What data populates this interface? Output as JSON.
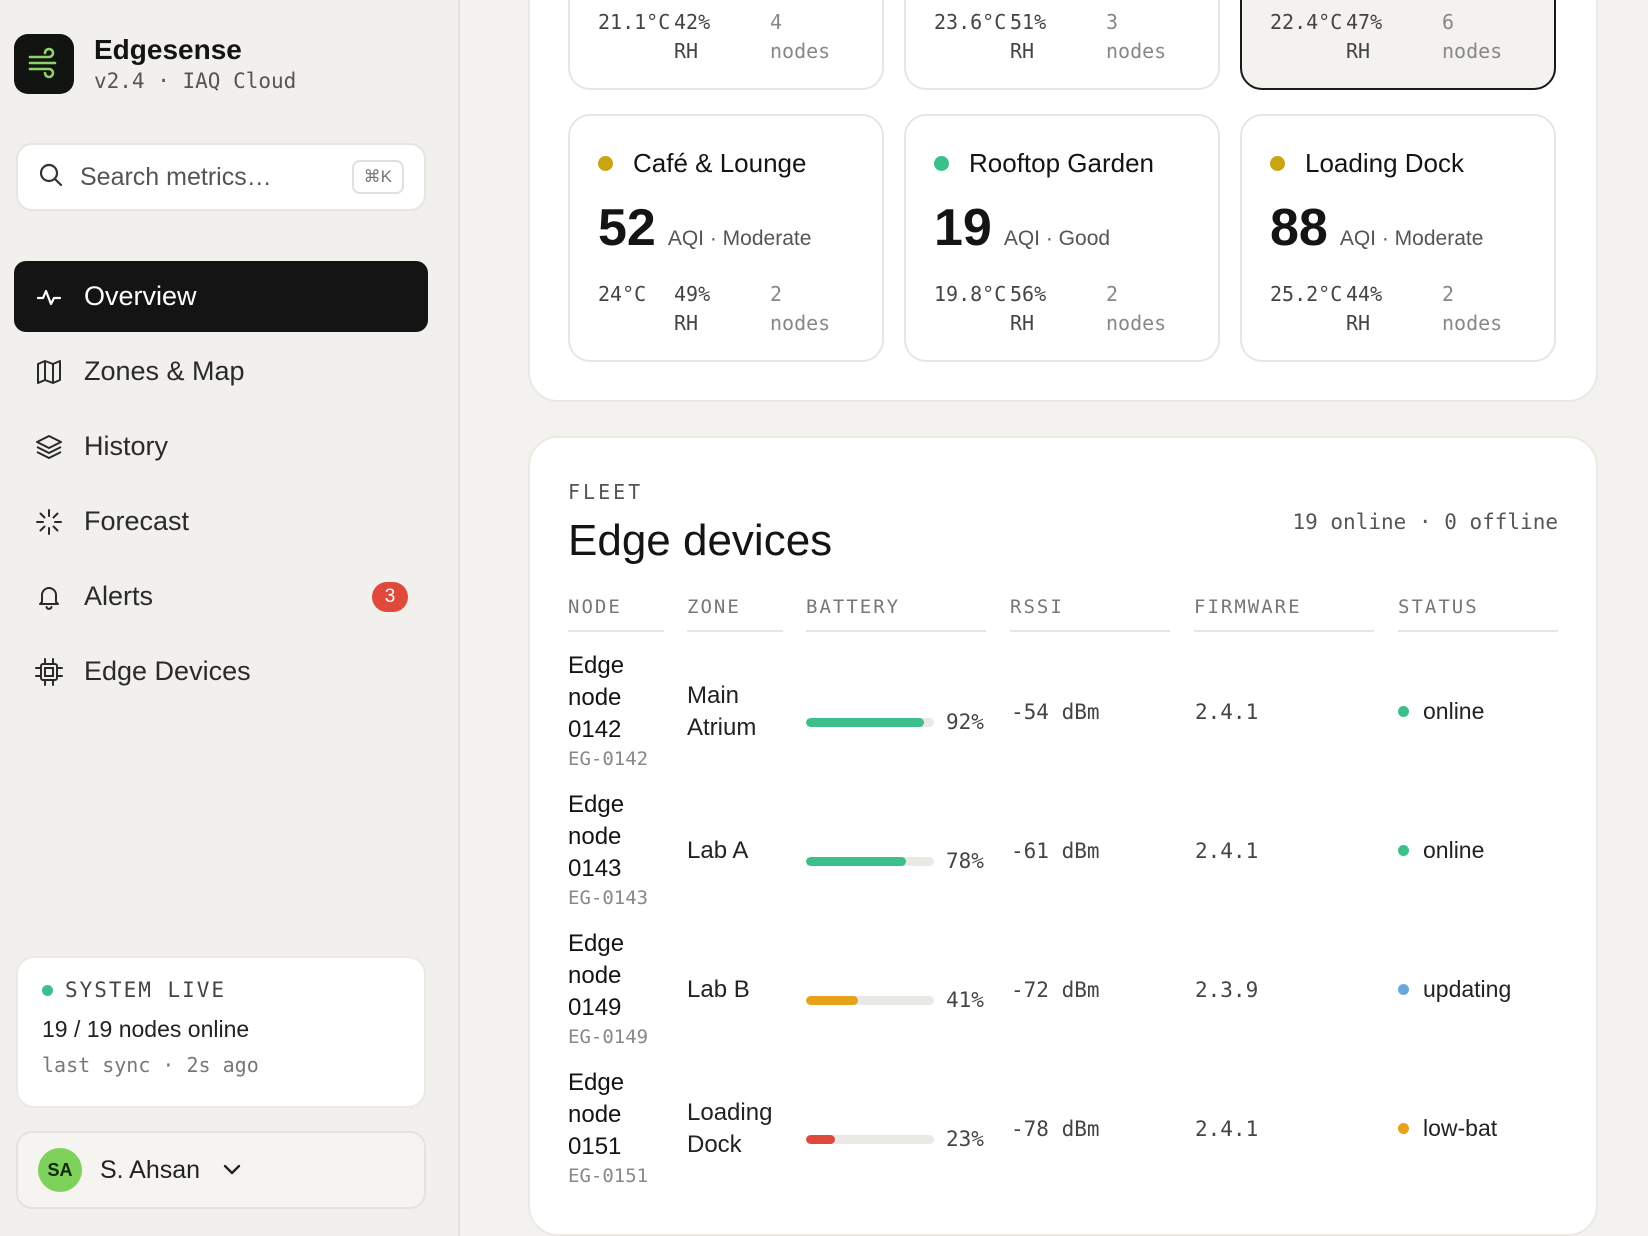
{
  "brand": {
    "name": "Edgesense",
    "subtitle": "v2.4 · IAQ Cloud",
    "logo_icon": "wind-icon",
    "logo_color": "#8fd16a"
  },
  "search": {
    "placeholder": "Search metrics…",
    "shortcut": "⌘K"
  },
  "nav": [
    {
      "label": "Overview",
      "icon": "pulse-icon",
      "active": true
    },
    {
      "label": "Zones & Map",
      "icon": "map-icon"
    },
    {
      "label": "History",
      "icon": "layers-icon"
    },
    {
      "label": "Forecast",
      "icon": "sparkle-icon"
    },
    {
      "label": "Alerts",
      "icon": "bell-icon",
      "badge": "3"
    },
    {
      "label": "Edge Devices",
      "icon": "chip-icon"
    }
  ],
  "system": {
    "status": "SYSTEM LIVE",
    "nodes_online": "19 / 19 nodes online",
    "last_sync": "last sync · 2s ago"
  },
  "user": {
    "initials": "SA",
    "name": "S. Ahsan"
  },
  "zones_partial": [
    {
      "temp": "21.1°C",
      "rh": "42%",
      "rh_unit": "RH",
      "nodes": "4",
      "nodes_unit": "nodes"
    },
    {
      "temp": "23.6°C",
      "rh": "51%",
      "rh_unit": "RH",
      "nodes": "3",
      "nodes_unit": "nodes"
    },
    {
      "temp": "22.4°C",
      "rh": "47%",
      "rh_unit": "RH",
      "nodes": "6",
      "nodes_unit": "nodes",
      "selected": true
    }
  ],
  "zones": [
    {
      "name": "Café & Lounge",
      "aqi": "52",
      "aqi_label": "AQI · Moderate",
      "temp": "24°C",
      "rh": "49%",
      "rh_unit": "RH",
      "nodes": "2",
      "nodes_unit": "nodes",
      "dot_color": "#c9a514"
    },
    {
      "name": "Rooftop Garden",
      "aqi": "19",
      "aqi_label": "AQI · Good",
      "temp": "19.8°C",
      "rh": "56%",
      "rh_unit": "RH",
      "nodes": "2",
      "nodes_unit": "nodes",
      "dot_color": "#3cbf8a"
    },
    {
      "name": "Loading Dock",
      "aqi": "88",
      "aqi_label": "AQI · Moderate",
      "temp": "25.2°C",
      "rh": "44%",
      "rh_unit": "RH",
      "nodes": "2",
      "nodes_unit": "nodes",
      "dot_color": "#c9a514"
    }
  ],
  "fleet": {
    "eyebrow": "FLEET",
    "title": "Edge devices",
    "summary": "19 online · 0 offline",
    "columns": [
      "NODE",
      "ZONE",
      "BATTERY",
      "RSSI",
      "FIRMWARE",
      "STATUS"
    ],
    "rows": [
      {
        "name_lines": [
          "Edge",
          "node",
          "0142"
        ],
        "id": "EG-0142",
        "zone_lines": [
          "Main",
          "Atrium"
        ],
        "battery": 92,
        "battery_label": "92%",
        "battery_color": "#3cbf8a",
        "rssi": "-54 dBm",
        "firmware": "2.4.1",
        "status": "online",
        "status_color": "#3cbf8a"
      },
      {
        "name_lines": [
          "Edge",
          "node",
          "0143"
        ],
        "id": "EG-0143",
        "zone_lines": [
          "Lab A"
        ],
        "battery": 78,
        "battery_label": "78%",
        "battery_color": "#3cbf8a",
        "rssi": "-61 dBm",
        "firmware": "2.4.1",
        "status": "online",
        "status_color": "#3cbf8a"
      },
      {
        "name_lines": [
          "Edge",
          "node",
          "0149"
        ],
        "id": "EG-0149",
        "zone_lines": [
          "Lab B"
        ],
        "battery": 41,
        "battery_label": "41%",
        "battery_color": "#e8a21a",
        "rssi": "-72 dBm",
        "firmware": "2.3.9",
        "status": "updating",
        "status_color": "#6aa8dc"
      },
      {
        "name_lines": [
          "Edge",
          "node",
          "0151"
        ],
        "id": "EG-0151",
        "zone_lines": [
          "Loading",
          "Dock"
        ],
        "battery": 23,
        "battery_label": "23%",
        "battery_color": "#e04a3c",
        "rssi": "-78 dBm",
        "firmware": "2.4.1",
        "status": "low-bat",
        "status_color": "#e8a21a"
      }
    ]
  }
}
